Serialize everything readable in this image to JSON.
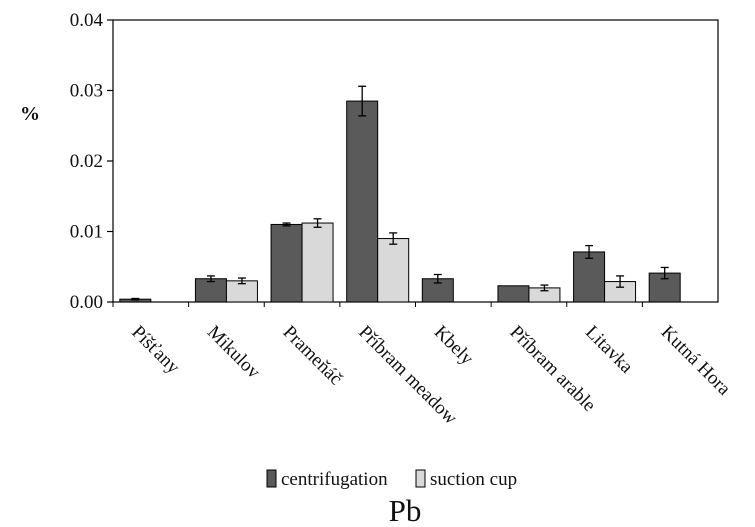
{
  "chart_data": {
    "type": "bar",
    "title": "Pb",
    "ylabel": "%",
    "xlabel": "",
    "ylim": [
      0,
      0.04
    ],
    "yticks": [
      "0.00",
      "0.01",
      "0.02",
      "0.03",
      "0.04"
    ],
    "ytick_values": [
      0,
      0.01,
      0.02,
      0.03,
      0.04
    ],
    "categories": [
      "Píšťany",
      "Mikulov",
      "Prameňáč",
      "Příbram meadow",
      "Kbely",
      "Příbram arable",
      "Litavka",
      "Kutná Hora"
    ],
    "series": [
      {
        "name": "centrifugation",
        "color": "#5a5a5a",
        "values": [
          0.0004,
          0.0033,
          0.011,
          0.0285,
          0.0033,
          0.0023,
          0.0071,
          0.0041
        ],
        "errors": [
          0.0001,
          0.0004,
          0.0002,
          0.0021,
          0.0006,
          0.0,
          0.0009,
          0.0008
        ]
      },
      {
        "name": "suction cup",
        "color": "#d9d9d9",
        "values": [
          null,
          0.003,
          0.0112,
          0.009,
          null,
          0.002,
          0.0029,
          null
        ],
        "errors": [
          null,
          0.0004,
          0.0006,
          0.0008,
          null,
          0.0004,
          0.0008,
          null
        ]
      }
    ],
    "grid": false,
    "legend_position": "bottom"
  }
}
